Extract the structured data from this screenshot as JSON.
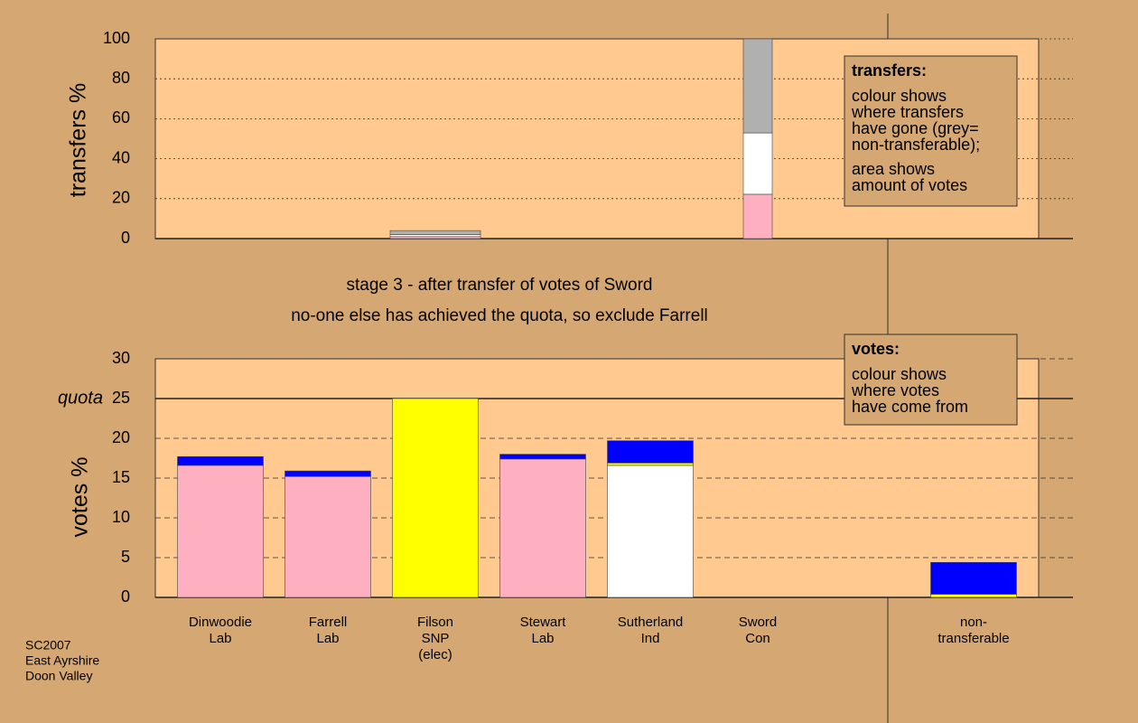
{
  "chart_data": [
    {
      "type": "bar",
      "stacked": true,
      "ylabel": "transfers %",
      "ylim": [
        0,
        100
      ],
      "yticks": [
        0,
        20,
        40,
        60,
        80,
        100
      ],
      "grid": true,
      "series": [
        {
          "color": "#ffb0c0",
          "values": [
            0,
            0,
            1,
            0,
            0,
            22.2,
            0
          ]
        },
        {
          "color": "#ffffff",
          "values": [
            0,
            0,
            1,
            0,
            0,
            30.7,
            0
          ]
        },
        {
          "color": "#b0b0b0",
          "values": [
            0,
            0,
            2,
            0,
            0,
            47.1,
            0
          ]
        }
      ],
      "annotation": {
        "title": "transfers:",
        "lines": [
          "colour shows",
          "where transfers",
          "have gone (grey=",
          "non-transferable);",
          "area shows",
          "amount of votes"
        ]
      }
    },
    {
      "type": "bar",
      "stacked": true,
      "ylabel": "votes %",
      "ylim": [
        0,
        30
      ],
      "yticks": [
        0,
        5,
        10,
        15,
        20,
        25,
        30
      ],
      "grid": true,
      "quota": 25,
      "quota_label": "quota",
      "categories": [
        [
          "Dinwoodie",
          "Lab"
        ],
        [
          "Farrell",
          "Lab"
        ],
        [
          "Filson",
          "SNP",
          "(elec)"
        ],
        [
          "Stewart",
          "Lab"
        ],
        [
          "Sutherland",
          "Ind"
        ],
        [
          "Sword",
          "Con"
        ],
        [
          "non-",
          "transferable"
        ]
      ],
      "series": [
        {
          "color": "#ffb0c0",
          "values": [
            16.6,
            15.2,
            0,
            17.4,
            0,
            0,
            0
          ]
        },
        {
          "color": "#ffffff",
          "values": [
            0,
            0,
            0,
            0,
            16.6,
            0,
            0
          ]
        },
        {
          "color": "#ffff00",
          "values": [
            0,
            0,
            25,
            0,
            0.3,
            0,
            0.4
          ]
        },
        {
          "color": "#0000ff",
          "values": [
            1.1,
            0.7,
            0,
            0.6,
            2.8,
            0,
            4.0
          ]
        }
      ],
      "annotation": {
        "title": "votes:",
        "lines": [
          "colour shows",
          "where votes",
          "have come from"
        ]
      }
    }
  ],
  "headings": [
    "stage 3 - after transfer of votes of Sword",
    "no-one else has achieved the quota, so exclude Farrell"
  ],
  "footnote": [
    "SC2007",
    "East Ayrshire",
    "Doon Valley"
  ]
}
